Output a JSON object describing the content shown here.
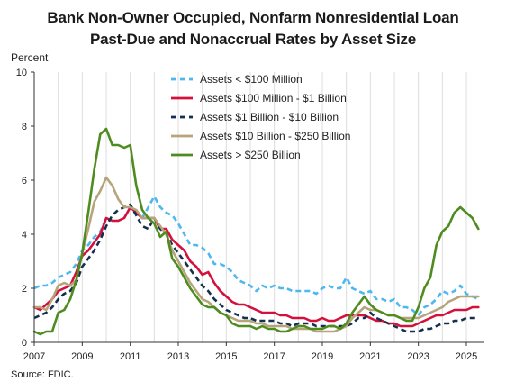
{
  "chart_data": {
    "type": "line",
    "title_lines": [
      "Bank Non-Owner Occupied, Nonfarm Nonresidential Loan",
      "Past-Due and Nonaccrual Rates by Asset Size"
    ],
    "ylabel": "Percent",
    "source": "Source: FDIC.",
    "ylim": [
      0,
      10
    ],
    "yticks": [
      0,
      2,
      4,
      6,
      8,
      10
    ],
    "xlim": [
      2007,
      2025.75
    ],
    "xticks": [
      2007,
      2009,
      2011,
      2013,
      2015,
      2017,
      2019,
      2021,
      2023,
      2025
    ],
    "xtick_labels": [
      "2007",
      "2009",
      "2011",
      "2013",
      "2015",
      "2017",
      "2019",
      "2021",
      "2023",
      "2025"
    ],
    "grid": "vertical lines at each year",
    "legend_position": "top-center",
    "series": [
      {
        "name": "Assets < $100 Million",
        "color": "#4db8ef",
        "style": "dashed",
        "x": [
          2007,
          2007.25,
          2007.5,
          2007.75,
          2008,
          2008.25,
          2008.5,
          2008.75,
          2009,
          2009.25,
          2009.5,
          2009.75,
          2010,
          2010.25,
          2010.5,
          2010.75,
          2011,
          2011.25,
          2011.5,
          2011.75,
          2012,
          2012.25,
          2012.5,
          2012.75,
          2013,
          2013.25,
          2013.5,
          2013.75,
          2014,
          2014.25,
          2014.5,
          2014.75,
          2015,
          2015.25,
          2015.5,
          2015.75,
          2016,
          2016.25,
          2016.5,
          2016.75,
          2017,
          2017.25,
          2017.5,
          2017.75,
          2018,
          2018.25,
          2018.5,
          2018.75,
          2019,
          2019.25,
          2019.5,
          2019.75,
          2020,
          2020.25,
          2020.5,
          2020.75,
          2021,
          2021.25,
          2021.5,
          2021.75,
          2022,
          2022.25,
          2022.5,
          2022.75,
          2023,
          2023.25,
          2023.5,
          2023.75,
          2024,
          2024.25,
          2024.5,
          2024.75,
          2025,
          2025.25,
          2025.5
        ],
        "values": [
          2.0,
          2.1,
          2.1,
          2.2,
          2.4,
          2.5,
          2.6,
          2.9,
          3.4,
          3.6,
          3.9,
          4.1,
          4.6,
          4.5,
          4.5,
          4.6,
          5.0,
          4.8,
          4.6,
          5.0,
          5.4,
          5.0,
          4.8,
          4.7,
          4.4,
          4.0,
          3.6,
          3.6,
          3.5,
          3.3,
          2.9,
          2.9,
          2.8,
          2.6,
          2.3,
          2.2,
          2.1,
          1.9,
          2.1,
          2.0,
          2.1,
          2.0,
          2.0,
          1.9,
          1.9,
          1.9,
          1.9,
          1.8,
          2.0,
          2.1,
          2.0,
          2.0,
          2.4,
          2.0,
          1.9,
          1.8,
          1.9,
          1.6,
          1.6,
          1.5,
          1.6,
          1.3,
          1.3,
          1.2,
          1.0,
          1.3,
          1.4,
          1.6,
          1.9,
          1.8,
          1.9,
          2.1,
          1.8,
          1.7,
          1.6
        ]
      },
      {
        "name": "Assets  $100 Million - $1 Billion",
        "color": "#d4103c",
        "style": "solid",
        "x": [
          2007,
          2007.25,
          2007.5,
          2007.75,
          2008,
          2008.25,
          2008.5,
          2008.75,
          2009,
          2009.25,
          2009.5,
          2009.75,
          2010,
          2010.25,
          2010.5,
          2010.75,
          2011,
          2011.25,
          2011.5,
          2011.75,
          2012,
          2012.25,
          2012.5,
          2012.75,
          2013,
          2013.25,
          2013.5,
          2013.75,
          2014,
          2014.25,
          2014.5,
          2014.75,
          2015,
          2015.25,
          2015.5,
          2015.75,
          2016,
          2016.25,
          2016.5,
          2016.75,
          2017,
          2017.25,
          2017.5,
          2017.75,
          2018,
          2018.25,
          2018.5,
          2018.75,
          2019,
          2019.25,
          2019.5,
          2019.75,
          2020,
          2020.25,
          2020.5,
          2020.75,
          2021,
          2021.25,
          2021.5,
          2021.75,
          2022,
          2022.25,
          2022.5,
          2022.75,
          2023,
          2023.25,
          2023.5,
          2023.75,
          2024,
          2024.25,
          2024.5,
          2024.75,
          2025,
          2025.25,
          2025.5
        ],
        "values": [
          1.3,
          1.2,
          1.4,
          1.6,
          1.9,
          2.0,
          2.1,
          2.6,
          3.2,
          3.4,
          3.7,
          4.0,
          4.6,
          4.5,
          4.5,
          4.6,
          5.0,
          4.8,
          4.6,
          4.6,
          4.6,
          4.2,
          4.2,
          3.8,
          3.6,
          3.4,
          3.0,
          2.8,
          2.5,
          2.6,
          2.2,
          1.9,
          1.7,
          1.5,
          1.4,
          1.4,
          1.3,
          1.2,
          1.1,
          1.1,
          1.1,
          1.0,
          1.0,
          0.9,
          0.9,
          0.9,
          0.8,
          0.8,
          0.9,
          0.8,
          0.8,
          0.9,
          1.0,
          1.0,
          1.0,
          1.0,
          0.9,
          0.8,
          0.8,
          0.7,
          0.7,
          0.6,
          0.6,
          0.6,
          0.7,
          0.8,
          0.9,
          1.0,
          1.0,
          1.1,
          1.2,
          1.2,
          1.2,
          1.3,
          1.3
        ]
      },
      {
        "name": "Assets  $1 Billion - $10 Billion",
        "color": "#14304f",
        "style": "dashed",
        "x": [
          2007,
          2007.25,
          2007.5,
          2007.75,
          2008,
          2008.25,
          2008.5,
          2008.75,
          2009,
          2009.25,
          2009.5,
          2009.75,
          2010,
          2010.25,
          2010.5,
          2010.75,
          2011,
          2011.25,
          2011.5,
          2011.75,
          2012,
          2012.25,
          2012.5,
          2012.75,
          2013,
          2013.25,
          2013.5,
          2013.75,
          2014,
          2014.25,
          2014.5,
          2014.75,
          2015,
          2015.25,
          2015.5,
          2015.75,
          2016,
          2016.25,
          2016.5,
          2016.75,
          2017,
          2017.25,
          2017.5,
          2017.75,
          2018,
          2018.25,
          2018.5,
          2018.75,
          2019,
          2019.25,
          2019.5,
          2019.75,
          2020,
          2020.25,
          2020.5,
          2020.75,
          2021,
          2021.25,
          2021.5,
          2021.75,
          2022,
          2022.25,
          2022.5,
          2022.75,
          2023,
          2023.25,
          2023.5,
          2023.75,
          2024,
          2024.25,
          2024.5,
          2024.75,
          2025,
          2025.25,
          2025.5
        ],
        "values": [
          0.9,
          1.0,
          1.1,
          1.3,
          1.6,
          1.8,
          1.9,
          2.2,
          2.8,
          3.1,
          3.4,
          3.8,
          4.3,
          4.7,
          4.9,
          5.0,
          5.1,
          4.7,
          4.3,
          4.2,
          4.6,
          4.2,
          4.0,
          3.6,
          3.3,
          3.0,
          2.7,
          2.4,
          2.1,
          1.9,
          1.6,
          1.4,
          1.2,
          1.1,
          1.0,
          0.9,
          0.9,
          0.8,
          0.8,
          0.8,
          0.8,
          0.7,
          0.7,
          0.6,
          0.7,
          0.7,
          0.7,
          0.6,
          0.6,
          0.6,
          0.6,
          0.6,
          0.6,
          0.7,
          0.9,
          0.9,
          1.1,
          0.9,
          0.8,
          0.7,
          0.6,
          0.5,
          0.4,
          0.4,
          0.4,
          0.5,
          0.5,
          0.6,
          0.7,
          0.7,
          0.8,
          0.8,
          0.9,
          0.9,
          0.9
        ]
      },
      {
        "name": "Assets  $10 Billion - $250 Billion",
        "color": "#b6a47b",
        "style": "solid",
        "x": [
          2007,
          2007.25,
          2007.5,
          2007.75,
          2008,
          2008.25,
          2008.5,
          2008.75,
          2009,
          2009.25,
          2009.5,
          2009.75,
          2010,
          2010.25,
          2010.5,
          2010.75,
          2011,
          2011.25,
          2011.5,
          2011.75,
          2012,
          2012.25,
          2012.5,
          2012.75,
          2013,
          2013.25,
          2013.5,
          2013.75,
          2014,
          2014.25,
          2014.5,
          2014.75,
          2015,
          2015.25,
          2015.5,
          2015.75,
          2016,
          2016.25,
          2016.5,
          2016.75,
          2017,
          2017.25,
          2017.5,
          2017.75,
          2018,
          2018.25,
          2018.5,
          2018.75,
          2019,
          2019.25,
          2019.5,
          2019.75,
          2020,
          2020.25,
          2020.5,
          2020.75,
          2021,
          2021.25,
          2021.5,
          2021.75,
          2022,
          2022.25,
          2022.5,
          2022.75,
          2023,
          2023.25,
          2023.5,
          2023.75,
          2024,
          2024.25,
          2024.5,
          2024.75,
          2025,
          2025.25,
          2025.5
        ],
        "values": [
          1.3,
          1.3,
          1.2,
          1.6,
          2.1,
          2.2,
          2.1,
          2.3,
          3.3,
          4.2,
          5.2,
          5.6,
          6.1,
          5.8,
          5.3,
          5.0,
          5.0,
          4.9,
          4.6,
          4.6,
          4.6,
          4.3,
          4.0,
          3.4,
          3.0,
          2.6,
          2.2,
          1.9,
          1.6,
          1.5,
          1.3,
          1.1,
          1.0,
          0.9,
          0.8,
          0.8,
          0.8,
          0.7,
          0.7,
          0.6,
          0.6,
          0.6,
          0.6,
          0.5,
          0.5,
          0.5,
          0.5,
          0.4,
          0.4,
          0.4,
          0.4,
          0.5,
          0.6,
          0.9,
          1.1,
          1.3,
          1.2,
          1.2,
          1.1,
          1.0,
          1.0,
          0.9,
          0.9,
          0.9,
          0.9,
          1.0,
          1.1,
          1.2,
          1.3,
          1.5,
          1.6,
          1.7,
          1.7,
          1.7,
          1.7
        ]
      },
      {
        "name": "Assets > $250 Billion",
        "color": "#4e8c1f",
        "style": "solid",
        "x": [
          2007,
          2007.25,
          2007.5,
          2007.75,
          2008,
          2008.25,
          2008.5,
          2008.75,
          2009,
          2009.25,
          2009.5,
          2009.75,
          2010,
          2010.25,
          2010.5,
          2010.75,
          2011,
          2011.25,
          2011.5,
          2011.75,
          2012,
          2012.25,
          2012.5,
          2012.75,
          2013,
          2013.25,
          2013.5,
          2013.75,
          2014,
          2014.25,
          2014.5,
          2014.75,
          2015,
          2015.25,
          2015.5,
          2015.75,
          2016,
          2016.25,
          2016.5,
          2016.75,
          2017,
          2017.25,
          2017.5,
          2017.75,
          2018,
          2018.25,
          2018.5,
          2018.75,
          2019,
          2019.25,
          2019.5,
          2019.75,
          2020,
          2020.25,
          2020.5,
          2020.75,
          2021,
          2021.25,
          2021.5,
          2021.75,
          2022,
          2022.25,
          2022.5,
          2022.75,
          2023,
          2023.25,
          2023.5,
          2023.75,
          2024,
          2024.25,
          2024.5,
          2024.75,
          2025,
          2025.25,
          2025.5
        ],
        "values": [
          0.4,
          0.3,
          0.4,
          0.4,
          1.1,
          1.2,
          1.6,
          2.3,
          3.3,
          4.8,
          6.4,
          7.7,
          7.9,
          7.3,
          7.3,
          7.2,
          7.3,
          5.8,
          4.9,
          4.6,
          4.4,
          3.9,
          4.1,
          3.1,
          2.8,
          2.4,
          2.0,
          1.7,
          1.4,
          1.3,
          1.3,
          1.1,
          1.0,
          0.7,
          0.6,
          0.6,
          0.6,
          0.5,
          0.6,
          0.5,
          0.5,
          0.4,
          0.4,
          0.5,
          0.6,
          0.6,
          0.5,
          0.5,
          0.5,
          0.6,
          0.6,
          0.5,
          0.7,
          1.1,
          1.4,
          1.7,
          1.4,
          1.2,
          1.1,
          1.0,
          1.0,
          0.9,
          0.8,
          0.8,
          1.3,
          2.0,
          2.4,
          3.6,
          4.1,
          4.3,
          4.8,
          5.0,
          4.8,
          4.6,
          4.2
        ]
      }
    ]
  }
}
